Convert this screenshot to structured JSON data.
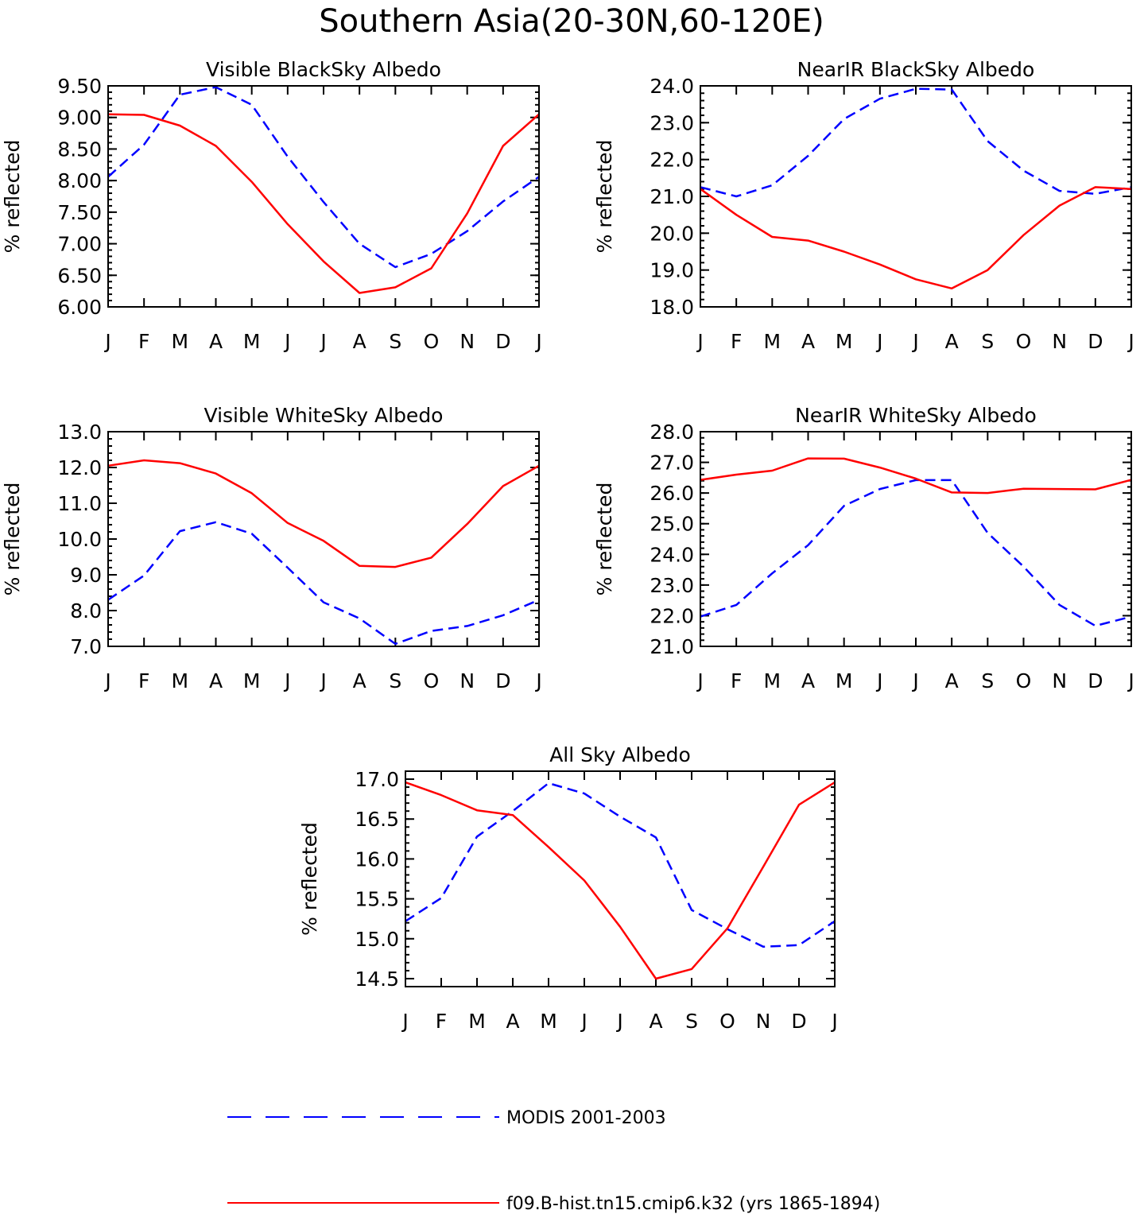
{
  "title": "Southern Asia(20-30N,60-120E)",
  "legend": {
    "items": [
      {
        "label": "MODIS 2001-2003",
        "color": "#0000ff",
        "style": "dashed"
      },
      {
        "label": "f09.B-hist.tn15.cmip6.k32 (yrs 1865-1894)",
        "color": "#ff0000",
        "style": "solid"
      }
    ]
  },
  "chart_data": [
    {
      "type": "line",
      "title": "Visible BlackSky Albedo",
      "ylabel": "% reflected",
      "x": [
        "J",
        "F",
        "M",
        "A",
        "M",
        "J",
        "J",
        "A",
        "S",
        "O",
        "N",
        "D",
        "J"
      ],
      "ylim": [
        6.0,
        9.5
      ],
      "yticks": [
        "6.00",
        "6.50",
        "7.00",
        "7.50",
        "8.00",
        "8.50",
        "9.00",
        "9.50"
      ],
      "series": [
        {
          "name": "MODIS 2001-2003",
          "color": "#0000ff",
          "style": "dashed",
          "values": [
            8.06,
            8.57,
            9.36,
            9.48,
            9.2,
            8.38,
            7.66,
            7.0,
            6.63,
            6.84,
            7.2,
            7.67,
            8.06
          ]
        },
        {
          "name": "f09.B-hist.tn15.cmip6.k32 (yrs 1865-1894)",
          "color": "#ff0000",
          "style": "solid",
          "values": [
            9.05,
            9.04,
            8.87,
            8.55,
            7.98,
            7.31,
            6.72,
            6.22,
            6.31,
            6.61,
            7.48,
            8.55,
            9.05
          ]
        }
      ]
    },
    {
      "type": "line",
      "title": "NearIR BlackSky Albedo",
      "ylabel": "% reflected",
      "x": [
        "J",
        "F",
        "M",
        "A",
        "M",
        "J",
        "J",
        "A",
        "S",
        "O",
        "N",
        "D",
        "J"
      ],
      "ylim": [
        18.0,
        24.0
      ],
      "yticks": [
        "18.0",
        "19.0",
        "20.0",
        "21.0",
        "22.0",
        "23.0",
        "24.0"
      ],
      "series": [
        {
          "name": "MODIS 2001-2003",
          "color": "#0000ff",
          "style": "dashed",
          "values": [
            21.25,
            21.0,
            21.3,
            22.1,
            23.1,
            23.65,
            23.92,
            23.9,
            22.5,
            21.7,
            21.15,
            21.07,
            21.25
          ]
        },
        {
          "name": "f09.B-hist.tn15.cmip6.k32 (yrs 1865-1894)",
          "color": "#ff0000",
          "style": "solid",
          "values": [
            21.2,
            20.5,
            19.9,
            19.8,
            19.5,
            19.15,
            18.75,
            18.5,
            19.0,
            19.95,
            20.75,
            21.25,
            21.2
          ]
        }
      ]
    },
    {
      "type": "line",
      "title": "Visible WhiteSky Albedo",
      "ylabel": "% reflected",
      "x": [
        "J",
        "F",
        "M",
        "A",
        "M",
        "J",
        "J",
        "A",
        "S",
        "O",
        "N",
        "D",
        "J"
      ],
      "ylim": [
        7.0,
        13.0
      ],
      "yticks": [
        "7.0",
        "8.0",
        "9.0",
        "10.0",
        "11.0",
        "12.0",
        "13.0"
      ],
      "series": [
        {
          "name": "MODIS 2001-2003",
          "color": "#0000ff",
          "style": "dashed",
          "values": [
            8.3,
            8.98,
            10.22,
            10.47,
            10.15,
            9.2,
            8.23,
            7.78,
            7.07,
            7.43,
            7.57,
            7.87,
            8.3
          ]
        },
        {
          "name": "f09.B-hist.tn15.cmip6.k32 (yrs 1865-1894)",
          "color": "#ff0000",
          "style": "solid",
          "values": [
            12.05,
            12.2,
            12.12,
            11.83,
            11.28,
            10.45,
            9.95,
            9.25,
            9.22,
            9.48,
            10.42,
            11.48,
            12.05
          ]
        }
      ]
    },
    {
      "type": "line",
      "title": "NearIR WhiteSky Albedo",
      "ylabel": "% reflected",
      "x": [
        "J",
        "F",
        "M",
        "A",
        "M",
        "J",
        "J",
        "A",
        "S",
        "O",
        "N",
        "D",
        "J"
      ],
      "ylim": [
        21.0,
        28.0
      ],
      "yticks": [
        "21.0",
        "22.0",
        "23.0",
        "24.0",
        "25.0",
        "26.0",
        "27.0",
        "28.0"
      ],
      "series": [
        {
          "name": "MODIS 2001-2003",
          "color": "#0000ff",
          "style": "dashed",
          "values": [
            21.97,
            22.35,
            23.38,
            24.3,
            25.58,
            26.13,
            26.42,
            26.42,
            24.7,
            23.6,
            22.35,
            21.67,
            21.97
          ]
        },
        {
          "name": "f09.B-hist.tn15.cmip6.k32 (yrs 1865-1894)",
          "color": "#ff0000",
          "style": "solid",
          "values": [
            26.43,
            26.6,
            26.73,
            27.13,
            27.12,
            26.83,
            26.47,
            26.02,
            26.0,
            26.14,
            26.13,
            26.12,
            26.43
          ]
        }
      ]
    },
    {
      "type": "line",
      "title": "All Sky Albedo",
      "ylabel": "% reflected",
      "x": [
        "J",
        "F",
        "M",
        "A",
        "M",
        "J",
        "J",
        "A",
        "S",
        "O",
        "N",
        "D",
        "J"
      ],
      "ylim": [
        14.4,
        17.1
      ],
      "yticks": [
        "14.5",
        "15.0",
        "15.5",
        "16.0",
        "16.5",
        "17.0"
      ],
      "series": [
        {
          "name": "MODIS 2001-2003",
          "color": "#0000ff",
          "style": "dashed",
          "values": [
            15.22,
            15.51,
            16.28,
            16.6,
            16.95,
            16.82,
            16.53,
            16.27,
            15.36,
            15.12,
            14.9,
            14.92,
            15.22
          ]
        },
        {
          "name": "f09.B-hist.tn15.cmip6.k32 (yrs 1865-1894)",
          "color": "#ff0000",
          "style": "solid",
          "values": [
            16.96,
            16.8,
            16.61,
            16.55,
            16.15,
            15.73,
            15.15,
            14.5,
            14.62,
            15.13,
            15.9,
            16.68,
            16.96
          ]
        }
      ]
    }
  ]
}
